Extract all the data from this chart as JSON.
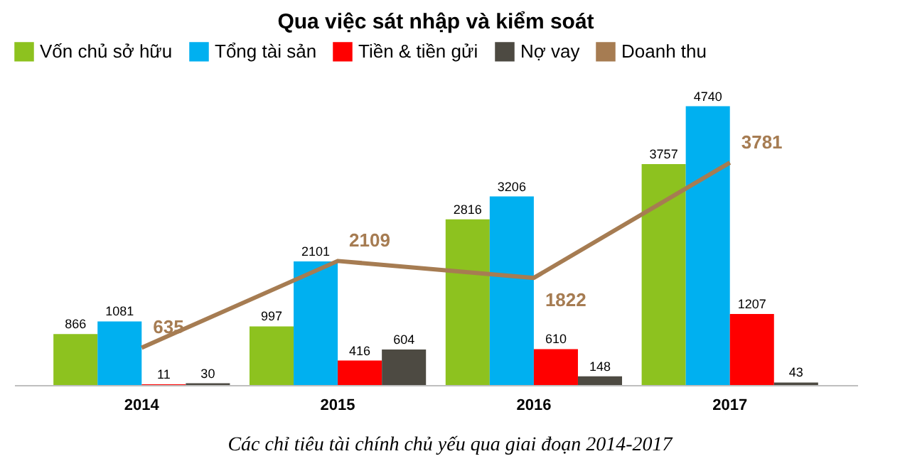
{
  "chart_data": {
    "type": "bar",
    "title": "Qua việc sát nhập và kiểm soát",
    "categories": [
      "2014",
      "2015",
      "2016",
      "2017"
    ],
    "series": [
      {
        "name": "Vốn chủ sở hữu",
        "color": "#8dc21f",
        "values": [
          866,
          997,
          2816,
          3757
        ]
      },
      {
        "name": "Tổng tài sản",
        "color": "#00b0f0",
        "values": [
          1081,
          2101,
          3206,
          4740
        ]
      },
      {
        "name": "Tiền & tiền gửi",
        "color": "#ff0000",
        "values": [
          11,
          416,
          610,
          1207
        ]
      },
      {
        "name": "Nợ vay",
        "color": "#4d4a42",
        "values": [
          30,
          604,
          148,
          43
        ]
      },
      {
        "name": "Doanh thu",
        "color": "#a67c52",
        "type": "line",
        "values": [
          635,
          2109,
          1822,
          3781
        ]
      }
    ],
    "data_labels": true,
    "legend": "top",
    "grid": false,
    "tick_labels": "x",
    "annotations": [
      "Các chỉ tiêu tài chính chủ yếu qua giai đoạn 2014-2017"
    ]
  }
}
